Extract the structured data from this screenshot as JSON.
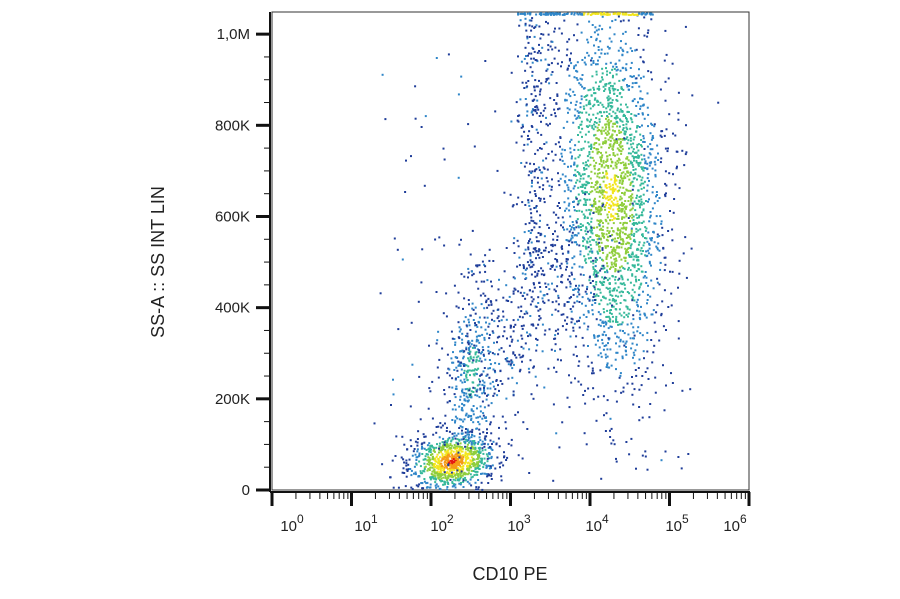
{
  "chart_data": {
    "type": "scatter",
    "style": "flow-cytometry density dot plot",
    "xlabel": "CD10 PE",
    "ylabel": "SS-A :: SS INT LIN",
    "x_scale": "log",
    "x_ticks": [
      {
        "value": 1,
        "base": "10",
        "exp": "0"
      },
      {
        "value": 10,
        "base": "10",
        "exp": "1"
      },
      {
        "value": 100,
        "base": "10",
        "exp": "2"
      },
      {
        "value": 1000,
        "base": "10",
        "exp": "3"
      },
      {
        "value": 10000,
        "base": "10",
        "exp": "4"
      },
      {
        "value": 100000,
        "base": "10",
        "exp": "5"
      },
      {
        "value": 1000000,
        "base": "10",
        "exp": "6"
      }
    ],
    "y_scale": "linear",
    "ylim": [
      0,
      1048576
    ],
    "y_ticks": [
      {
        "value": 0,
        "label": "0"
      },
      {
        "value": 200000,
        "label": "200K"
      },
      {
        "value": 400000,
        "label": "400K"
      },
      {
        "value": 600000,
        "label": "600K"
      },
      {
        "value": 800000,
        "label": "800K"
      },
      {
        "value": 1000000,
        "label": "1,0M"
      }
    ],
    "color_scale": [
      "#1f3d99",
      "#2f86c8",
      "#35b89a",
      "#8fce3c",
      "#f2e51d",
      "#f59b16",
      "#e51b12"
    ],
    "populations": [
      {
        "x": 180,
        "y": 65000,
        "count": "dense",
        "peak_color": "#e51b12"
      },
      {
        "x": 320,
        "y": 260000,
        "count": "moderate",
        "peak_color": "#35b89a"
      },
      {
        "x": 18000,
        "y": 650000,
        "count": "dense",
        "peak_color": "#f2e51d"
      },
      {
        "x": 2500,
        "y": 1045000,
        "count": "saturated at top edge",
        "peak_color": "#f2e51d"
      }
    ],
    "grid": false,
    "legend": "none"
  }
}
